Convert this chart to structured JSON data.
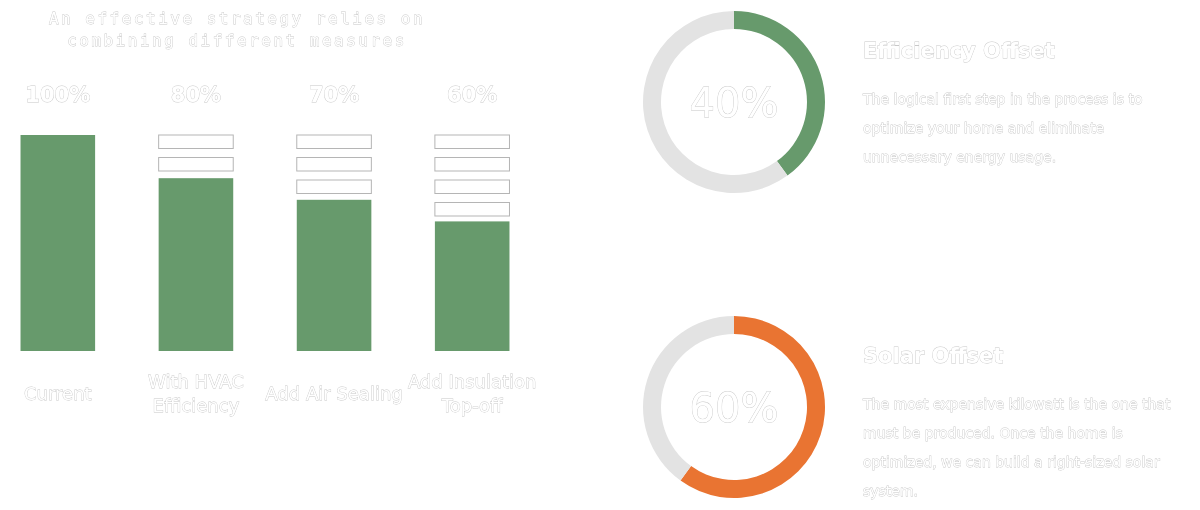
{
  "chart_data": [
    {
      "type": "bar",
      "title": "An effective strategy relies on combining different measures",
      "categories": [
        "Current",
        "With HVAC Efficiency",
        "Add Air Sealing",
        "Add Insulation Top-off"
      ],
      "values": [
        100,
        80,
        70,
        60
      ],
      "value_labels": [
        "100%",
        "80%",
        "70%",
        "60%"
      ],
      "color": "#679a6c"
    },
    {
      "type": "donut",
      "title": "Efficiency Offset",
      "subtitle": "The logical first step in the process is to optimize your home and eliminate unnecessary energy usage.",
      "categories": [
        null,
        null
      ],
      "values": [
        40,
        60
      ],
      "colors": [
        "#679a6c",
        "#e3e3e3"
      ],
      "annotations": [
        "40%"
      ]
    },
    {
      "type": "donut",
      "title": "Solar Offset",
      "subtitle": "The most expensive kilowatt is the one that must be produced.  Once the home is optimized, we can build a right-sized solar system.",
      "categories": [
        null,
        null
      ],
      "values": [
        60,
        40
      ],
      "colors": [
        "#e97432",
        "#e3e3e3"
      ],
      "annotations": [
        "60%"
      ]
    }
  ]
}
